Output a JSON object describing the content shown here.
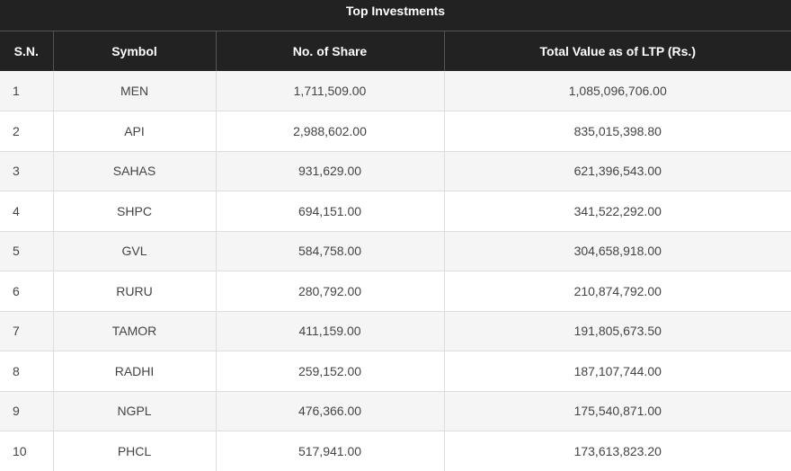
{
  "title": "Top Investments",
  "columns": [
    "S.N.",
    "Symbol",
    "No. of Share",
    "Total Value as of LTP (Rs.)"
  ],
  "rows": [
    {
      "sn": "1",
      "symbol": "MEN",
      "shares": "1,711,509.00",
      "value": "1,085,096,706.00"
    },
    {
      "sn": "2",
      "symbol": "API",
      "shares": "2,988,602.00",
      "value": "835,015,398.80"
    },
    {
      "sn": "3",
      "symbol": "SAHAS",
      "shares": "931,629.00",
      "value": "621,396,543.00"
    },
    {
      "sn": "4",
      "symbol": "SHPC",
      "shares": "694,151.00",
      "value": "341,522,292.00"
    },
    {
      "sn": "5",
      "symbol": "GVL",
      "shares": "584,758.00",
      "value": "304,658,918.00"
    },
    {
      "sn": "6",
      "symbol": "RURU",
      "shares": "280,792.00",
      "value": "210,874,792.00"
    },
    {
      "sn": "7",
      "symbol": "TAMOR",
      "shares": "411,159.00",
      "value": "191,805,673.50"
    },
    {
      "sn": "8",
      "symbol": "RADHI",
      "shares": "259,152.00",
      "value": "187,107,744.00"
    },
    {
      "sn": "9",
      "symbol": "NGPL",
      "shares": "476,366.00",
      "value": "175,540,871.00"
    },
    {
      "sn": "10",
      "symbol": "PHCL",
      "shares": "517,941.00",
      "value": "173,613,823.20"
    }
  ]
}
